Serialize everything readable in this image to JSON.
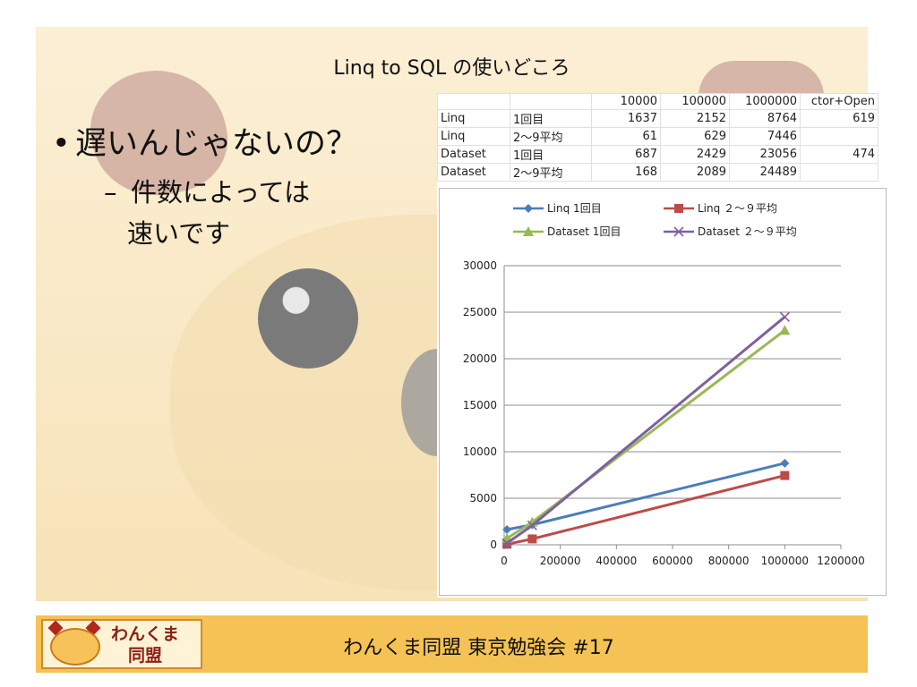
{
  "slide": {
    "title": "Linq to SQL の使いどころ",
    "bullet": "遅いんじゃないの？",
    "sub_line1": "件数によっては",
    "sub_line2": "速いです"
  },
  "table": {
    "header": [
      "",
      "",
      "10000",
      "100000",
      "1000000",
      "ctor+Open"
    ],
    "rows": [
      [
        "Linq",
        "1回目",
        "1637",
        "2152",
        "8764",
        "619"
      ],
      [
        "Linq",
        "2〜9平均",
        "61",
        "629",
        "7446",
        ""
      ],
      [
        "Dataset",
        "1回目",
        "687",
        "2429",
        "23056",
        "474"
      ],
      [
        "Dataset",
        "2〜9平均",
        "168",
        "2089",
        "24489",
        ""
      ]
    ]
  },
  "chart_data": {
    "type": "scatter",
    "xlim": [
      0,
      1200000
    ],
    "ylim": [
      0,
      30000
    ],
    "xticks": [
      "0",
      "200000",
      "400000",
      "600000",
      "800000",
      "1000000",
      "1200000"
    ],
    "yticks": [
      "0",
      "5000",
      "10000",
      "15000",
      "20000",
      "25000",
      "30000"
    ],
    "grid": true,
    "legend_position": "top",
    "x": [
      10000,
      100000,
      1000000
    ],
    "series": [
      {
        "name": "Linq 1回目",
        "values": [
          1637,
          2152,
          8764
        ],
        "color": "#4a7ebb",
        "marker": "diamond"
      },
      {
        "name": "Linq ２〜９平均",
        "values": [
          61,
          629,
          7446
        ],
        "color": "#be4b48",
        "marker": "square"
      },
      {
        "name": "Dataset 1回目",
        "values": [
          687,
          2429,
          23056
        ],
        "color": "#98b954",
        "marker": "triangle"
      },
      {
        "name": "Dataset ２〜９平均",
        "values": [
          168,
          2089,
          24489
        ],
        "color": "#7d60a0",
        "marker": "x"
      }
    ]
  },
  "footer": {
    "logo_line1": "わんくま",
    "logo_line2": "同盟",
    "text": "わんくま同盟 東京勉強会 #17"
  }
}
